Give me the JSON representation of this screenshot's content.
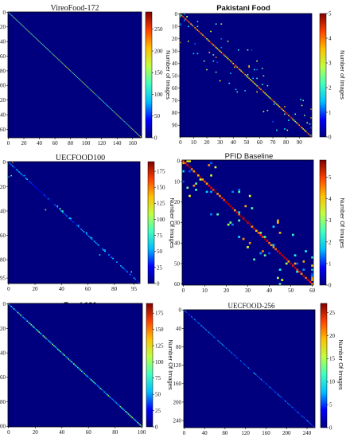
{
  "colors": {
    "background": "#00007f",
    "diagonal": "#ff3a00",
    "frame": "#000000"
  },
  "colormap": [
    "#00007f",
    "#0000ff",
    "#00bfff",
    "#40ffbf",
    "#bfff40",
    "#ffbf00",
    "#ff4000",
    "#7f0000"
  ],
  "chart_data": [
    {
      "type": "heatmap",
      "title": "VireoFood-172",
      "xlabel": "",
      "ylabel": "",
      "n": 172,
      "xticks": [
        "0",
        "20",
        "40",
        "60",
        "80",
        "100",
        "120",
        "140",
        "160"
      ],
      "xtick_values": [
        0,
        20,
        40,
        60,
        80,
        100,
        120,
        140,
        160
      ],
      "yticks": [
        "0",
        "20",
        "40",
        "60",
        "80",
        "100",
        "120",
        "140",
        "160"
      ],
      "ytick_values": [
        0,
        20,
        40,
        60,
        80,
        100,
        120,
        140,
        160
      ],
      "colorbar": {
        "label": "Number of Images",
        "ticks": [
          "0",
          "50",
          "100",
          "150",
          "200",
          "250"
        ],
        "tick_values": [
          0,
          50,
          100,
          150,
          200,
          250
        ],
        "min": 0,
        "max": 290
      },
      "diag_level": 0.5,
      "scatter_count": 0,
      "outliers": []
    },
    {
      "type": "heatmap",
      "title": "Pakistani Food",
      "xlabel": "",
      "ylabel": "",
      "n": 100,
      "xticks": [
        "0",
        "10",
        "20",
        "30",
        "40",
        "50",
        "60",
        "70",
        "80",
        "90"
      ],
      "xtick_values": [
        0,
        10,
        20,
        30,
        40,
        50,
        60,
        70,
        80,
        90
      ],
      "yticks": [
        "0",
        "10",
        "20",
        "30",
        "40",
        "50",
        "60",
        "70",
        "80",
        "90"
      ],
      "ytick_values": [
        0,
        10,
        20,
        30,
        40,
        50,
        60,
        70,
        80,
        90
      ],
      "colorbar": {
        "label": "Number of Images",
        "ticks": [
          "0",
          "1",
          "2",
          "3",
          "4",
          "5"
        ],
        "tick_values": [
          0,
          1,
          2,
          3,
          4,
          5
        ],
        "min": 0,
        "max": 5
      },
      "diag_level": 0.7,
      "scatter_count": 80,
      "outliers": []
    },
    {
      "type": "heatmap",
      "title": "UECFOOD100",
      "xlabel": "",
      "ylabel": "",
      "n": 100,
      "xticks": [
        "0",
        "20",
        "40",
        "60",
        "80",
        "95"
      ],
      "xtick_values": [
        0,
        20,
        40,
        60,
        80,
        95
      ],
      "yticks": [
        "0",
        "20",
        "40",
        "60",
        "80",
        "95"
      ],
      "ytick_values": [
        0,
        20,
        40,
        60,
        80,
        95
      ],
      "colorbar": {
        "label": "Number Of Images",
        "ticks": [
          "0",
          "25",
          "50",
          "75",
          "100",
          "125",
          "150",
          "175"
        ],
        "tick_values": [
          0,
          25,
          50,
          75,
          100,
          125,
          150,
          175
        ],
        "min": 0,
        "max": 190
      },
      "diag_level": 0.2,
      "scatter_count": 6,
      "outliers": [
        [
          36,
          37,
          0.45
        ],
        [
          38,
          39,
          0.5
        ],
        [
          40,
          41,
          0.45
        ],
        [
          46,
          47,
          0.35
        ],
        [
          52,
          53,
          0.3
        ],
        [
          58,
          59,
          0.35
        ],
        [
          62,
          63,
          0.3
        ],
        [
          72,
          73,
          0.3
        ],
        [
          11,
          12,
          0.3
        ]
      ]
    },
    {
      "type": "heatmap",
      "title": "PFID Baseline",
      "xlabel": "",
      "ylabel": "",
      "n": 61,
      "xticks": [
        "0",
        "10",
        "20",
        "30",
        "40",
        "50",
        "60"
      ],
      "xtick_values": [
        0,
        10,
        20,
        30,
        40,
        50,
        60
      ],
      "yticks": [
        "0",
        "10",
        "20",
        "30",
        "40",
        "50",
        "60"
      ],
      "ytick_values": [
        0,
        10,
        20,
        30,
        40,
        50,
        60
      ],
      "colorbar": {
        "label": "Number Of Images",
        "ticks": [
          "0",
          "1",
          "2",
          "3",
          "4",
          "5"
        ],
        "tick_values": [
          0,
          1,
          2,
          3,
          4,
          5
        ],
        "min": 0,
        "max": 5.8
      },
      "diag_level": 0.85,
      "scatter_count": 70,
      "outliers": []
    },
    {
      "type": "heatmap",
      "title": "Food 101",
      "xlabel": "",
      "ylabel": "",
      "n": 101,
      "xticks": [
        "0",
        "20",
        "40",
        "60",
        "80",
        "100"
      ],
      "xtick_values": [
        0,
        20,
        40,
        60,
        80,
        100
      ],
      "yticks": [
        "0",
        "20",
        "40",
        "60",
        "80",
        "100"
      ],
      "ytick_values": [
        0,
        20,
        40,
        60,
        80,
        100
      ],
      "colorbar": {
        "label": "Number Of Images",
        "ticks": [
          "0",
          "25",
          "50",
          "75",
          "100",
          "125",
          "150",
          "175"
        ],
        "tick_values": [
          0,
          25,
          50,
          75,
          100,
          125,
          150,
          175
        ],
        "min": 0,
        "max": 190
      },
      "diag_level": 0.38,
      "scatter_count": 0,
      "outliers": []
    },
    {
      "type": "heatmap",
      "title": "UECFOOD-256",
      "xlabel": "",
      "ylabel": "",
      "n": 256,
      "xticks": [
        "0",
        "40",
        "80",
        "120",
        "160",
        "200",
        "240"
      ],
      "xtick_values": [
        0,
        40,
        80,
        120,
        160,
        200,
        240
      ],
      "yticks": [
        "0",
        "40",
        "80",
        "120",
        "160",
        "200",
        "240"
      ],
      "ytick_values": [
        0,
        40,
        80,
        120,
        160,
        200,
        240
      ],
      "colorbar": {
        "label": "Number Of Images",
        "ticks": [
          "0",
          "5",
          "10",
          "15",
          "20",
          "25"
        ],
        "tick_values": [
          0,
          5,
          10,
          15,
          20,
          25
        ],
        "min": 0,
        "max": 27
      },
      "diag_level": 0.22,
      "scatter_count": 0,
      "outliers": []
    }
  ]
}
